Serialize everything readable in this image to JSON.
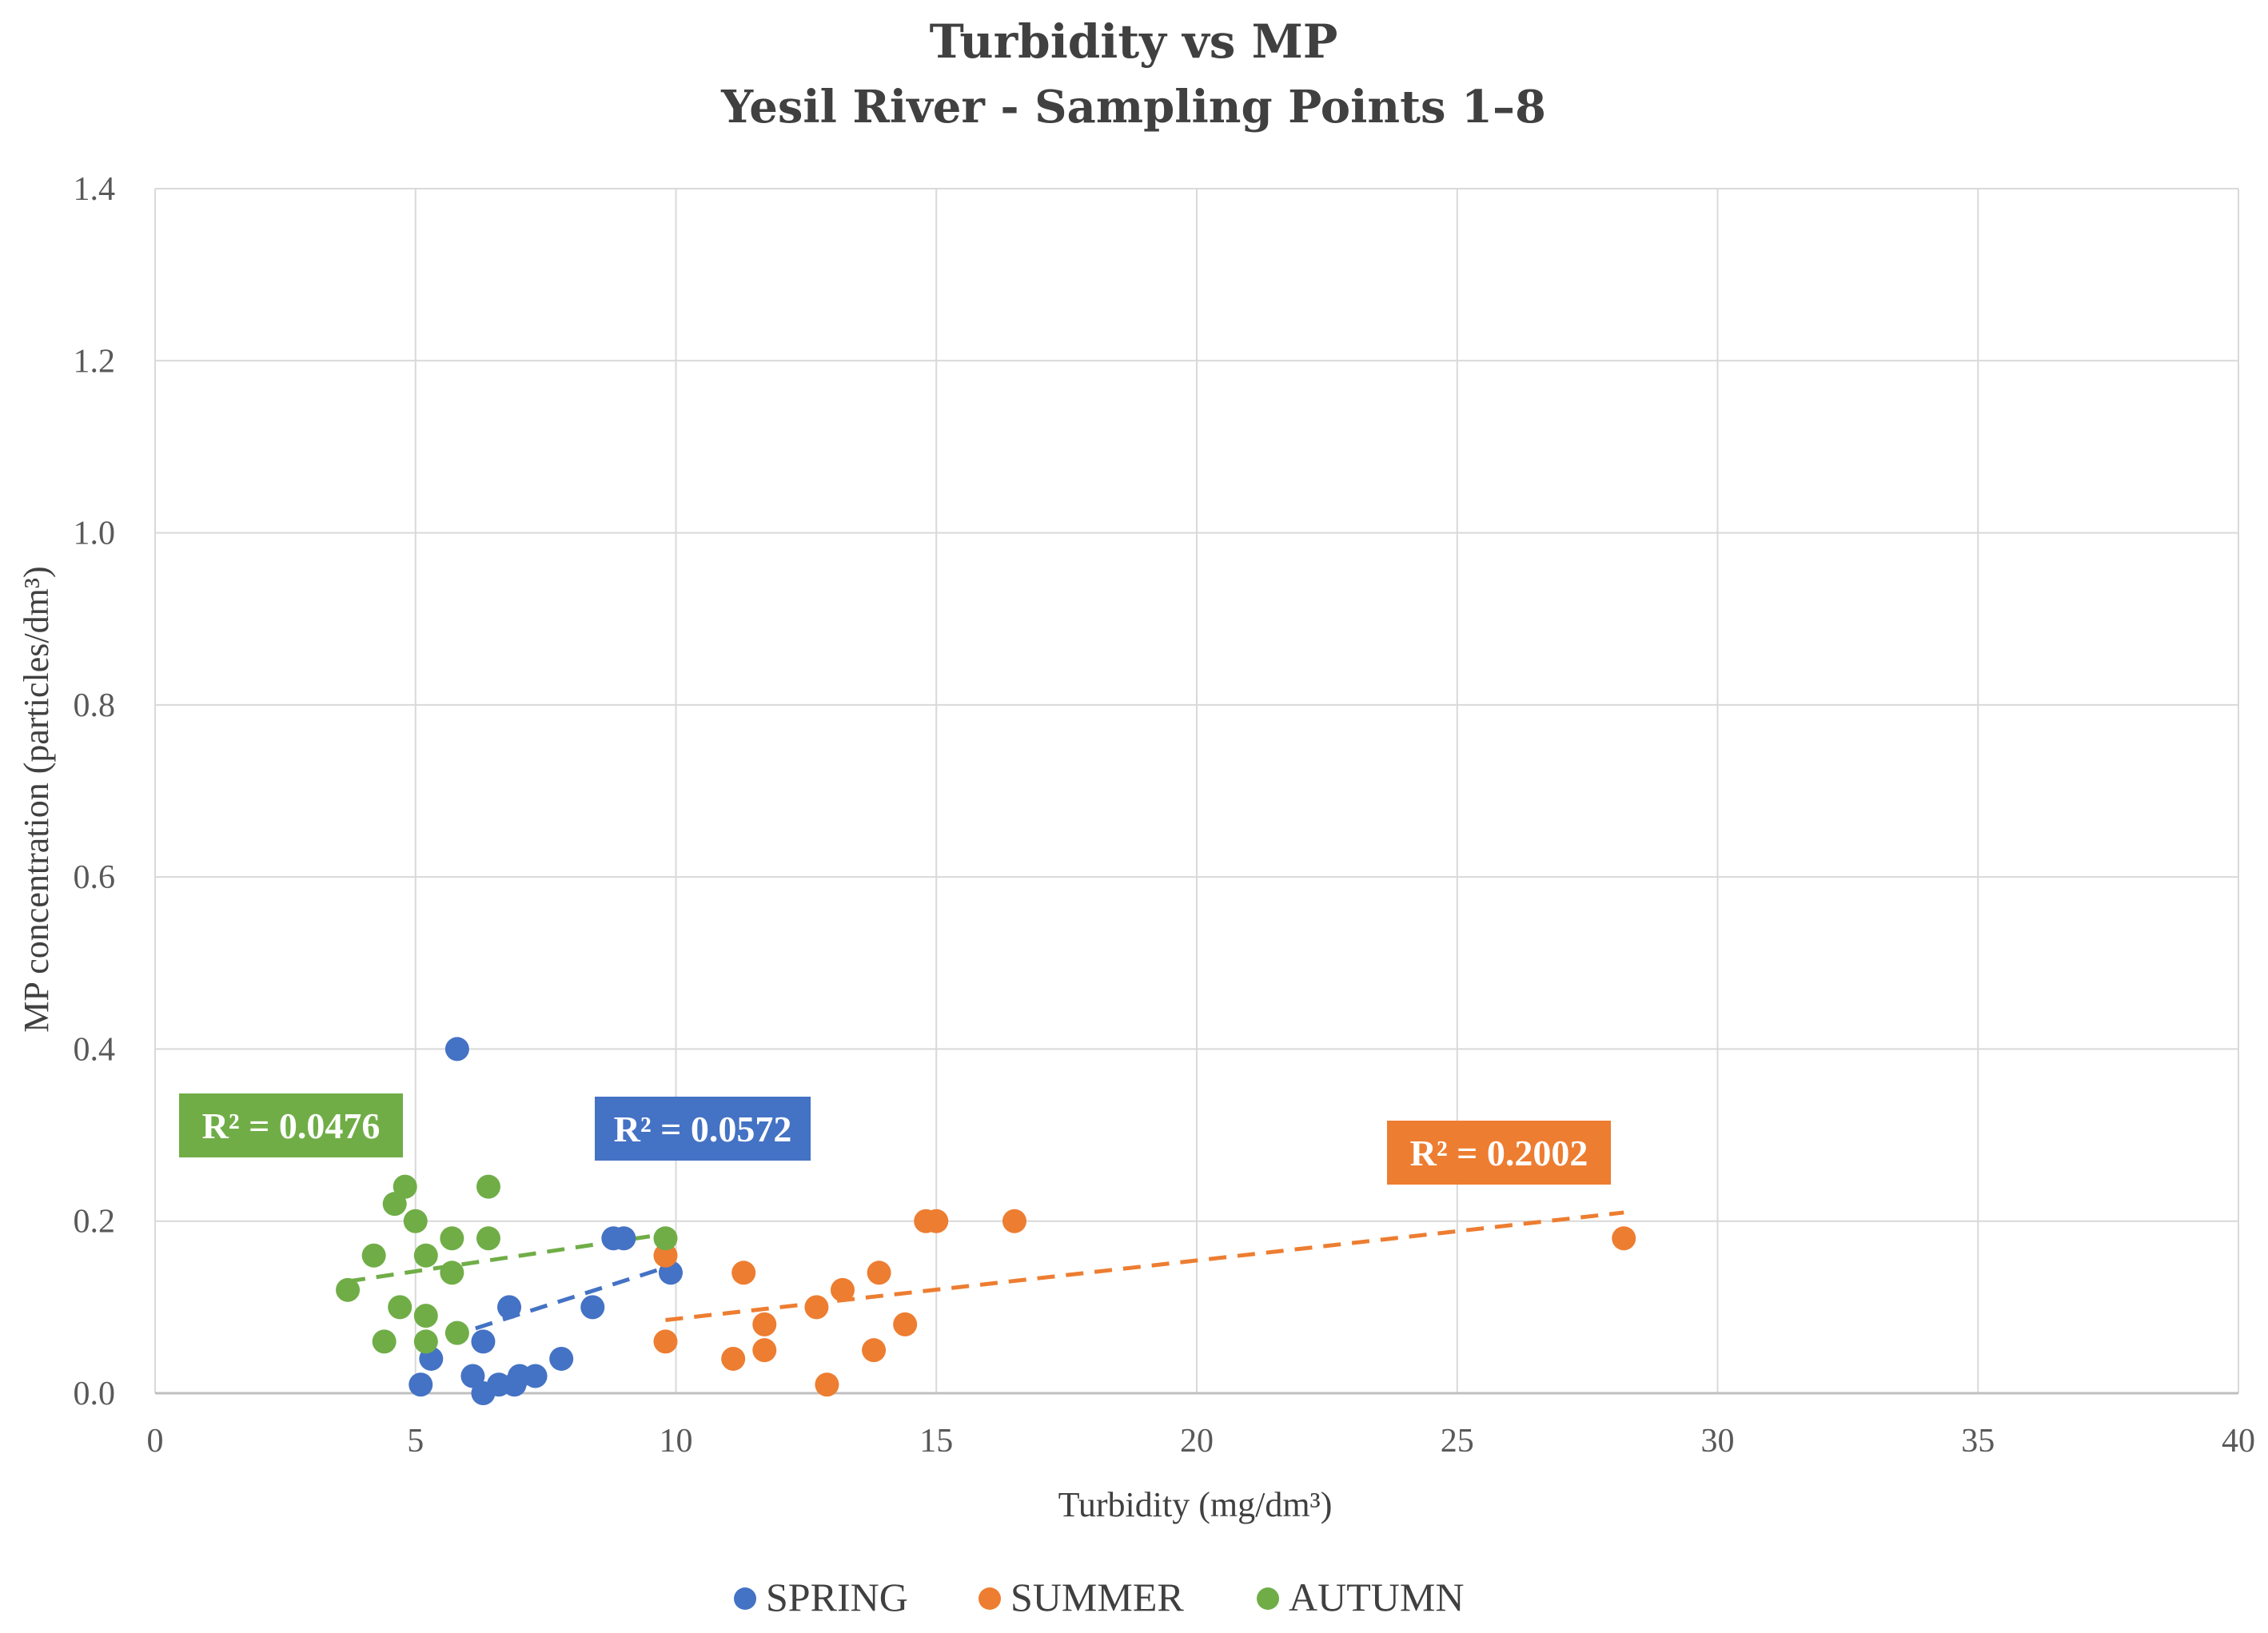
{
  "chart_data": {
    "type": "scatter",
    "title": "Turbidity vs MP",
    "subtitle": "Yesil River - Sampling Points 1–8",
    "xlabel": "Turbidity (mg/dm³)",
    "ylabel": "MP concentration (particles/dm³)",
    "xlim": [
      0,
      40
    ],
    "ylim": [
      0,
      1.4
    ],
    "x_ticks": [
      0,
      5,
      10,
      15,
      20,
      25,
      30,
      35,
      40
    ],
    "y_ticks": [
      0.0,
      0.2,
      0.4,
      0.6,
      0.8,
      1.0,
      1.2,
      1.4
    ],
    "y_tick_labels": [
      "0.0",
      "0.2",
      "0.4",
      "0.6",
      "0.8",
      "1.0",
      "1.2",
      "1.4"
    ],
    "grid": true,
    "legend_position": "bottom-center",
    "series": [
      {
        "name": "SPRING",
        "color": "#4472C4",
        "points": [
          [
            5.8,
            0.4
          ],
          [
            9.9,
            0.14
          ],
          [
            8.8,
            0.18
          ],
          [
            9.0,
            0.18
          ],
          [
            8.4,
            0.1
          ],
          [
            6.8,
            0.1
          ],
          [
            6.3,
            0.06
          ],
          [
            5.3,
            0.04
          ],
          [
            7.8,
            0.04
          ],
          [
            5.1,
            0.01
          ],
          [
            6.1,
            0.02
          ],
          [
            6.3,
            0.0
          ],
          [
            6.6,
            0.01
          ],
          [
            6.9,
            0.01
          ],
          [
            7.0,
            0.02
          ],
          [
            7.3,
            0.02
          ]
        ],
        "trendline": {
          "x": [
            5.1,
            9.9
          ],
          "y": [
            0.055,
            0.148
          ],
          "r2_label": "R² = 0.0572"
        }
      },
      {
        "name": "SUMMER",
        "color": "#ED7D31",
        "points": [
          [
            28.2,
            0.18
          ],
          [
            16.5,
            0.2
          ],
          [
            14.8,
            0.2
          ],
          [
            15.0,
            0.2
          ],
          [
            9.8,
            0.16
          ],
          [
            11.3,
            0.14
          ],
          [
            13.9,
            0.14
          ],
          [
            13.2,
            0.12
          ],
          [
            12.7,
            0.1
          ],
          [
            11.7,
            0.08
          ],
          [
            14.4,
            0.08
          ],
          [
            9.8,
            0.06
          ],
          [
            11.7,
            0.05
          ],
          [
            13.8,
            0.05
          ],
          [
            11.1,
            0.04
          ],
          [
            12.9,
            0.01
          ]
        ],
        "trendline": {
          "x": [
            9.8,
            28.2
          ],
          "y": [
            0.085,
            0.21
          ],
          "r2_label": "R² = 0.2002"
        }
      },
      {
        "name": "AUTUMN",
        "color": "#70AD47",
        "points": [
          [
            3.7,
            0.12
          ],
          [
            4.2,
            0.16
          ],
          [
            4.6,
            0.22
          ],
          [
            4.8,
            0.24
          ],
          [
            5.0,
            0.2
          ],
          [
            5.2,
            0.16
          ],
          [
            5.7,
            0.18
          ],
          [
            5.7,
            0.14
          ],
          [
            6.4,
            0.24
          ],
          [
            6.4,
            0.18
          ],
          [
            9.8,
            0.18
          ],
          [
            4.7,
            0.1
          ],
          [
            5.2,
            0.09
          ],
          [
            4.4,
            0.06
          ],
          [
            5.2,
            0.06
          ],
          [
            5.8,
            0.07
          ]
        ],
        "trendline": {
          "x": [
            3.7,
            9.8
          ],
          "y": [
            0.13,
            0.185
          ],
          "r2_label": "R² = 0.0476"
        }
      }
    ]
  }
}
